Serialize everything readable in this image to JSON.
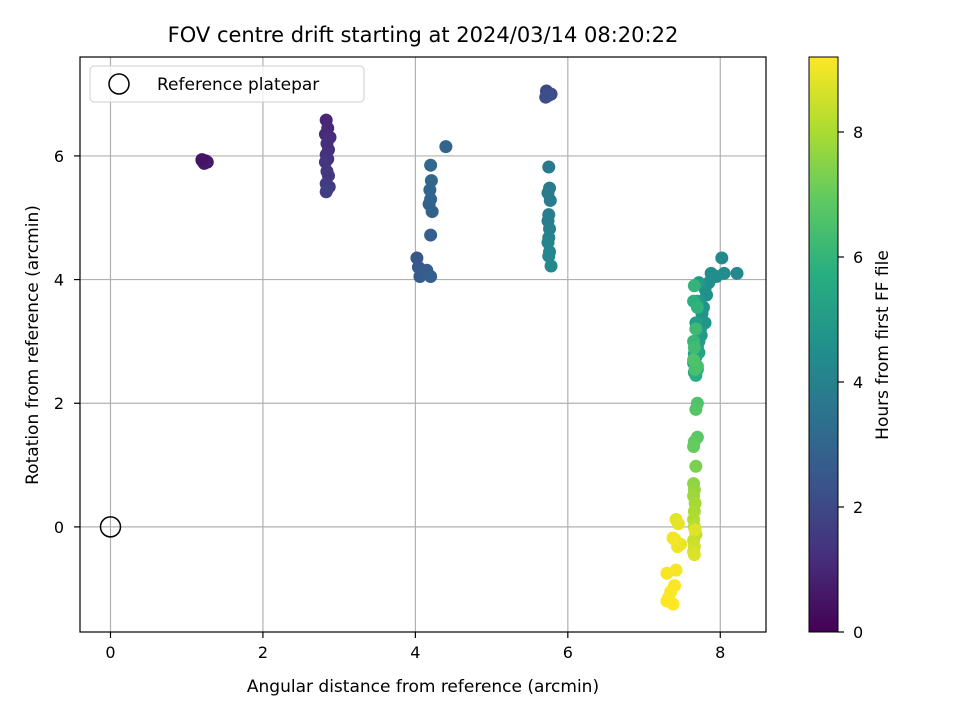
{
  "chart_data": {
    "type": "scatter",
    "title": "FOV centre drift starting at 2024/03/14 08:20:22",
    "xlabel": "Angular distance from reference (arcmin)",
    "ylabel": "Rotation from reference (arcmin)",
    "xlim": [
      -0.4,
      8.6
    ],
    "ylim": [
      -1.7,
      7.6
    ],
    "x_ticks": [
      0,
      2,
      4,
      6,
      8
    ],
    "y_ticks": [
      0,
      2,
      4,
      6
    ],
    "grid": true,
    "legend": {
      "placement": "upper-left",
      "label": "Reference platepar"
    },
    "reference_point": {
      "x": 0,
      "y": 0
    },
    "colorbar": {
      "label": "Hours from first FF file",
      "colormap": "viridis",
      "range": [
        0,
        9.2
      ],
      "ticks": [
        0,
        2,
        4,
        6,
        8
      ]
    },
    "series": [
      {
        "x": [
          1.2,
          1.22,
          1.25,
          1.23,
          1.27,
          1.2,
          2.83,
          2.85,
          2.82,
          2.88,
          2.84,
          2.86,
          2.83,
          2.85,
          2.82,
          2.84,
          2.86,
          2.83,
          2.87,
          2.84,
          2.83,
          4.02,
          4.04,
          4.06,
          4.1,
          4.15,
          4.2,
          4.2,
          4.22,
          4.18,
          4.2,
          4.19,
          4.21,
          4.2,
          4.4,
          5.72,
          5.74,
          5.78,
          5.71,
          5.75,
          5.75,
          5.76,
          5.74,
          5.77,
          5.75,
          5.74,
          5.76,
          5.75,
          5.74,
          5.76,
          5.75,
          5.78,
          8.22,
          8.02,
          8.05,
          7.95,
          7.88,
          7.85,
          7.8,
          7.82,
          7.78,
          7.76,
          7.8,
          7.74,
          7.72,
          7.7,
          7.75,
          7.72,
          7.68,
          7.7,
          7.66,
          7.68,
          7.72,
          7.65,
          7.7,
          7.66,
          7.68,
          7.65,
          7.7,
          7.66,
          7.65,
          7.68,
          7.66,
          7.7,
          7.67,
          7.65,
          7.7,
          7.68,
          7.7,
          7.66,
          7.65,
          7.68,
          7.65,
          7.66,
          7.65,
          7.67,
          7.66,
          7.65,
          7.66,
          7.68,
          7.65,
          7.66,
          7.65,
          7.66,
          7.67,
          7.42,
          7.45,
          7.4,
          7.48,
          7.44,
          7.38,
          7.42,
          7.3,
          7.4,
          7.35,
          7.32,
          7.38,
          7.3
        ],
        "y": [
          5.93,
          5.9,
          5.92,
          5.88,
          5.9,
          5.94,
          6.58,
          6.45,
          6.35,
          6.3,
          6.2,
          6.1,
          6.02,
          5.95,
          5.9,
          5.75,
          5.68,
          5.55,
          5.5,
          5.45,
          5.42,
          4.35,
          4.2,
          4.05,
          4.1,
          4.15,
          4.05,
          4.72,
          5.1,
          5.22,
          5.3,
          5.45,
          5.6,
          5.85,
          6.15,
          7.05,
          7.0,
          7.0,
          6.95,
          6.98,
          5.82,
          5.48,
          5.4,
          5.28,
          5.05,
          4.95,
          4.82,
          4.68,
          4.6,
          4.45,
          4.38,
          4.22,
          4.1,
          4.35,
          4.1,
          4.05,
          4.1,
          3.95,
          3.85,
          3.75,
          3.55,
          3.45,
          3.3,
          3.2,
          3.95,
          3.65,
          3.1,
          3.0,
          3.3,
          2.9,
          2.8,
          2.75,
          2.82,
          2.65,
          2.55,
          2.5,
          2.45,
          3.65,
          3.55,
          3.9,
          3.0,
          3.2,
          2.9,
          2.6,
          2.55,
          2.7,
          2.0,
          1.9,
          1.45,
          1.38,
          1.3,
          0.98,
          0.7,
          0.6,
          0.5,
          0.38,
          0.25,
          0.12,
          0.0,
          -0.12,
          -0.22,
          -0.32,
          -0.4,
          -0.45,
          -0.05,
          0.12,
          0.05,
          -0.2,
          -0.28,
          -0.32,
          -0.18,
          -0.7,
          -0.75,
          -0.95,
          -1.05,
          -1.15,
          -1.25,
          -1.2
        ],
        "hours": [
          0.5,
          0.55,
          0.6,
          0.62,
          0.65,
          0.5,
          1.0,
          1.05,
          1.1,
          1.15,
          1.2,
          1.25,
          1.3,
          1.35,
          1.4,
          1.45,
          1.5,
          1.55,
          1.6,
          1.65,
          1.7,
          2.5,
          2.55,
          2.6,
          2.65,
          2.7,
          2.75,
          2.8,
          2.85,
          2.9,
          2.95,
          3.0,
          3.05,
          3.1,
          3.0,
          2.0,
          2.05,
          2.1,
          2.15,
          2.2,
          3.7,
          3.75,
          3.8,
          3.85,
          3.9,
          3.95,
          4.0,
          4.05,
          4.1,
          4.15,
          4.2,
          4.25,
          4.3,
          4.35,
          4.4,
          4.45,
          4.5,
          4.55,
          4.6,
          4.65,
          4.7,
          4.75,
          4.8,
          4.85,
          4.9,
          4.95,
          5.0,
          5.05,
          5.1,
          5.15,
          5.2,
          5.25,
          5.3,
          5.4,
          5.5,
          5.6,
          5.7,
          5.8,
          5.9,
          6.0,
          6.1,
          6.2,
          6.3,
          6.4,
          6.5,
          6.55,
          6.6,
          6.7,
          6.8,
          6.9,
          7.0,
          7.3,
          7.6,
          7.7,
          7.8,
          7.9,
          8.0,
          8.1,
          8.2,
          8.3,
          8.4,
          8.5,
          8.6,
          8.7,
          8.75,
          8.8,
          8.85,
          8.9,
          8.95,
          9.0,
          9.05,
          9.1,
          9.12,
          9.14,
          9.16,
          9.18,
          9.2,
          9.2
        ]
      }
    ]
  }
}
